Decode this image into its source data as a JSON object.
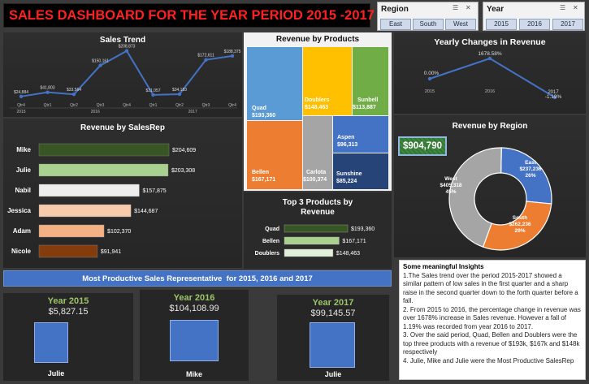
{
  "title": "SALES DASHBOARD FOR THE YEAR PERIOD 2015 -2017",
  "slicers": {
    "region": {
      "label": "Region",
      "options": [
        "East",
        "South",
        "West"
      ]
    },
    "year": {
      "label": "Year",
      "options": [
        "2015",
        "2016",
        "2017"
      ]
    }
  },
  "sales_trend": {
    "title": "Sales Trend",
    "chart_data": {
      "type": "line",
      "categories": [
        "Qtr4",
        "Qtr1",
        "Qtr2",
        "Qtr3",
        "Qtr4",
        "Qtr1",
        "Qtr2",
        "Qtr3",
        "Qtr4"
      ],
      "years": [
        "2015",
        "2016",
        "2017"
      ],
      "values": [
        24884,
        41803,
        33564,
        150161,
        208873,
        31057,
        34183,
        172611,
        188375
      ],
      "labels": [
        "$24,884",
        "$41,803",
        "$33,564",
        "$150,161",
        "$208,873",
        "$31,057",
        "$34,183",
        "$172,611",
        "$188,375"
      ]
    }
  },
  "revenue_by_products": {
    "title": "Revenue by Products",
    "chart_data": {
      "type": "treemap",
      "items": [
        {
          "name": "Quad",
          "value": "$193,360",
          "color": "#5b9bd5"
        },
        {
          "name": "Bellen",
          "value": "$167,171",
          "color": "#ed7d31"
        },
        {
          "name": "Doublers",
          "value": "$148,463",
          "color": "#ffc000"
        },
        {
          "name": "Carlota",
          "value": "$100,374",
          "color": "#a5a5a5"
        },
        {
          "name": "Sunbell",
          "value": "$113,887",
          "color": "#70ad47"
        },
        {
          "name": "Aspen",
          "value": "$96,313",
          "color": "#4472c4"
        },
        {
          "name": "Sunshine",
          "value": "$85,224",
          "color": "#264478"
        }
      ]
    }
  },
  "yearly_changes": {
    "title": "Yearly Changes in Revenue",
    "chart_data": {
      "type": "line",
      "categories": [
        "2015",
        "2016",
        "2017"
      ],
      "values": [
        0.0,
        1678.58,
        -1.19
      ],
      "labels": [
        "0.00%",
        "1678.58%",
        "-1.19%"
      ]
    }
  },
  "revenue_by_salesrep": {
    "title": "Revenue by SalesRep",
    "chart_data": {
      "type": "bar",
      "categories": [
        "Mike",
        "Julie",
        "Nabil",
        "Jessica",
        "Adam",
        "Nicole"
      ],
      "values": [
        204609,
        203308,
        157875,
        144687,
        102370,
        91941
      ],
      "labels": [
        "$204,609",
        "$203,308",
        "$157,875",
        "$144,687",
        "$102,370",
        "$91,941"
      ],
      "colors": [
        "#375623",
        "#a9d08e",
        "#ededed",
        "#f8cbad",
        "#f4b183",
        "#843c0c"
      ]
    }
  },
  "total_revenue": "$904,790",
  "revenue_by_region": {
    "title": "Revenue by Region",
    "chart_data": {
      "type": "pie",
      "categories": [
        "East",
        "South",
        "West"
      ],
      "values": [
        237236,
        262236,
        405318
      ],
      "value_labels": [
        "$237,236",
        "$262,236",
        "$405,318"
      ],
      "percent_labels": [
        "26%",
        "29%",
        "45%"
      ],
      "colors": [
        "#4472c4",
        "#ed7d31",
        "#a5a5a5"
      ]
    }
  },
  "top3_products": {
    "title": "Top 3 Products by Revenue",
    "chart_data": {
      "type": "bar",
      "categories": [
        "Quad",
        "Bellen",
        "Doublers"
      ],
      "values": [
        193360,
        167171,
        148463
      ],
      "labels": [
        "$193,360",
        "$167,171",
        "$148,463"
      ],
      "colors": [
        "#375623",
        "#a9d08e",
        "#e2efda"
      ]
    }
  },
  "most_productive": {
    "banner": "Most Productive Sales Representative  for 2015, 2016 and 2017",
    "cards": [
      {
        "year": "Year 2015",
        "value": "$5,827.15",
        "name": "Julie"
      },
      {
        "year": "Year 2016",
        "value": "$104,108.99",
        "name": "Mike"
      },
      {
        "year": "Year 2017",
        "value": "$99,145.57",
        "name": "Julie"
      }
    ]
  },
  "insights": {
    "heading": "Some meaningful Insights",
    "items": [
      "1.The Sales trend over the period 2015-2017 showed a similar pattern of low sales in the first quarter and a sharp raise in the second quarter down to the forth quarter before a fall.",
      "2. From 2015 to 2016, the percentage change in revenue was over 1678% increase in Sales revenue. However a fall of 1.19% was recorded from year 2016 to 2017.",
      "3. Over the said period, Quad, Bellen and Doublers were the top three products with a revenue of $193k, $167k and $148k respectively",
      "4. Julie, Mike and Julie were the Most Productive SalesRep"
    ]
  }
}
